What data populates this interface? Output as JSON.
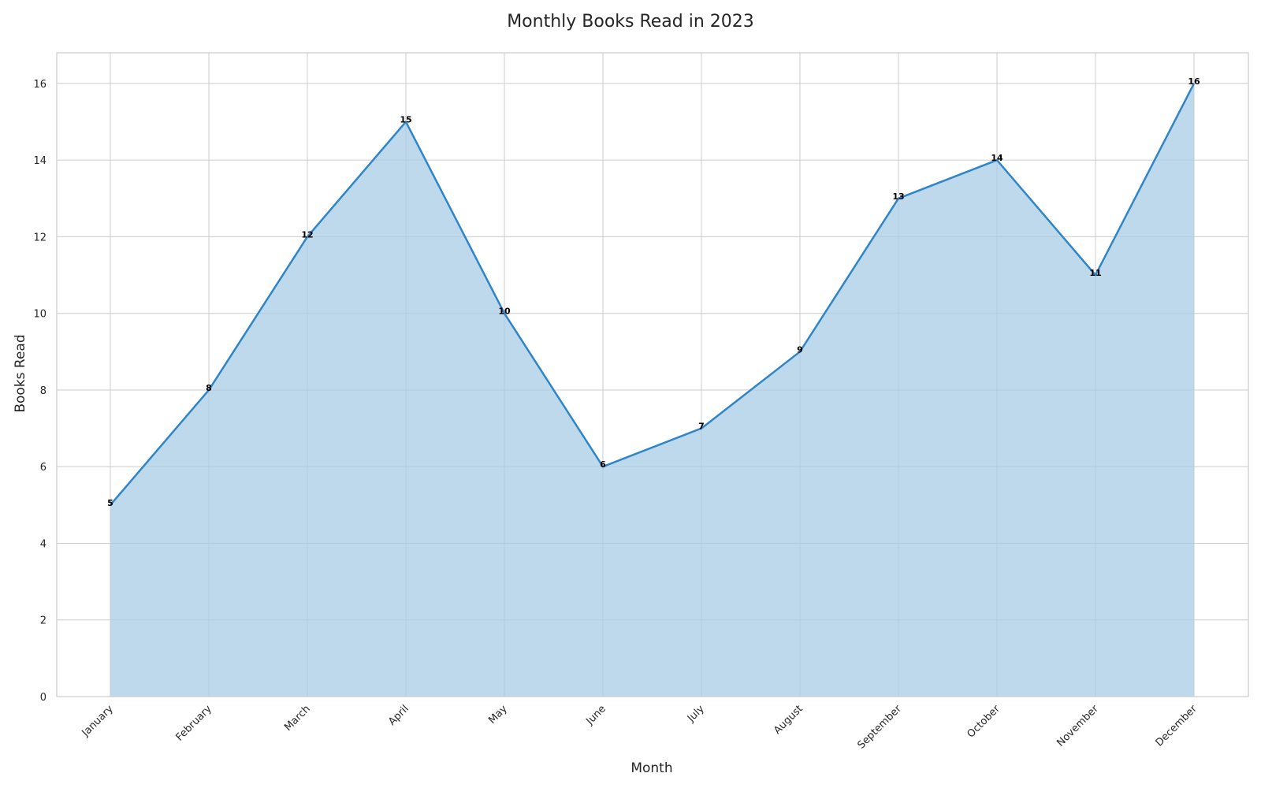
{
  "chart_data": {
    "type": "area",
    "title": "Monthly Books Read in 2023",
    "xlabel": "Month",
    "ylabel": "Books Read",
    "categories": [
      "January",
      "February",
      "March",
      "April",
      "May",
      "June",
      "July",
      "August",
      "September",
      "October",
      "November",
      "December"
    ],
    "values": [
      5,
      8,
      12,
      15,
      10,
      6,
      7,
      9,
      13,
      14,
      11,
      16
    ],
    "data_labels": [
      "5",
      "8",
      "12",
      "15",
      "10",
      "6",
      "7",
      "9",
      "13",
      "14",
      "11",
      "16"
    ],
    "yticks": [
      "0",
      "2",
      "4",
      "6",
      "8",
      "10",
      "12",
      "14",
      "16"
    ],
    "ylim": [
      0,
      16.8
    ],
    "grid": true,
    "line_color": "#2e86c8",
    "fill_color": "#a9cce6"
  }
}
